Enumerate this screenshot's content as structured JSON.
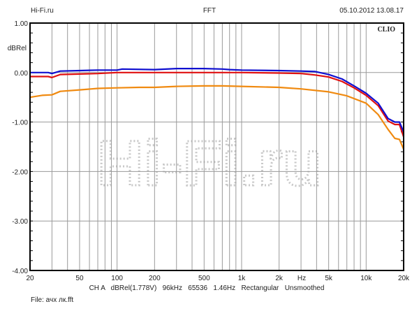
{
  "header": {
    "left": "Hi-Fi.ru",
    "center": "FFT",
    "right": "05.10.2012 13.08.17"
  },
  "brand": "CLIO",
  "watermark": "Hi-Fi.ru",
  "footer": {
    "settings": "CH A   dBRel(1.778V)   96kHz   65536   1.46Hz   Rectangular   Unsmoothed",
    "file": "File: ачх лк.fft"
  },
  "chart_data": {
    "type": "line",
    "title": "FFT",
    "xlabel": "Hz",
    "ylabel": "dBRel",
    "xscale": "log",
    "xlim": [
      20,
      20000
    ],
    "ylim": [
      -4,
      1
    ],
    "grid": true,
    "yticks": [
      1,
      0,
      -1,
      -2,
      -3,
      -4
    ],
    "ytick_labels": [
      "1.00",
      "0.00",
      "-1.00",
      "-2.00",
      "-3.00",
      "-4.00"
    ],
    "xticks": [
      20,
      50,
      100,
      200,
      500,
      1000,
      2000,
      5000,
      10000,
      20000
    ],
    "xtick_labels": [
      "20",
      "50",
      "100",
      "200",
      "500",
      "1k",
      "2k",
      "5k",
      "10k",
      "20k"
    ],
    "series": [
      {
        "name": "blue",
        "color": "#1010d0",
        "x": [
          20,
          28,
          30,
          35,
          50,
          70,
          100,
          110,
          200,
          300,
          500,
          700,
          800,
          1000,
          2000,
          3000,
          3900,
          5000,
          6400,
          8000,
          10000,
          12500,
          15000,
          17000,
          18500,
          20000
        ],
        "y": [
          0.0,
          0.0,
          -0.02,
          0.03,
          0.04,
          0.05,
          0.05,
          0.07,
          0.06,
          0.08,
          0.08,
          0.07,
          0.06,
          0.05,
          0.04,
          0.03,
          0.02,
          -0.04,
          -0.13,
          -0.27,
          -0.42,
          -0.62,
          -0.93,
          -1.0,
          -1.0,
          -1.2
        ]
      },
      {
        "name": "red",
        "color": "#e01010",
        "x": [
          20,
          28,
          30,
          35,
          50,
          70,
          100,
          200,
          300,
          500,
          700,
          1000,
          2000,
          3000,
          3900,
          5000,
          6400,
          8000,
          10000,
          12500,
          15000,
          17000,
          18500,
          20000
        ],
        "y": [
          -0.08,
          -0.08,
          -0.1,
          -0.04,
          -0.03,
          -0.02,
          0.0,
          0.0,
          0.0,
          0.0,
          0.0,
          0.0,
          -0.01,
          -0.02,
          -0.05,
          -0.09,
          -0.18,
          -0.31,
          -0.46,
          -0.67,
          -0.98,
          -1.05,
          -1.05,
          -1.3
        ]
      },
      {
        "name": "orange",
        "color": "#f08a10",
        "x": [
          20,
          25,
          30,
          35,
          50,
          70,
          100,
          150,
          200,
          300,
          500,
          700,
          1000,
          2000,
          3000,
          5000,
          7000,
          10000,
          12500,
          15000,
          17000,
          18500,
          20000
        ],
        "y": [
          -0.5,
          -0.46,
          -0.45,
          -0.38,
          -0.35,
          -0.32,
          -0.31,
          -0.3,
          -0.3,
          -0.28,
          -0.27,
          -0.27,
          -0.28,
          -0.3,
          -0.33,
          -0.39,
          -0.47,
          -0.62,
          -0.85,
          -1.15,
          -1.33,
          -1.35,
          -1.55
        ]
      }
    ]
  }
}
